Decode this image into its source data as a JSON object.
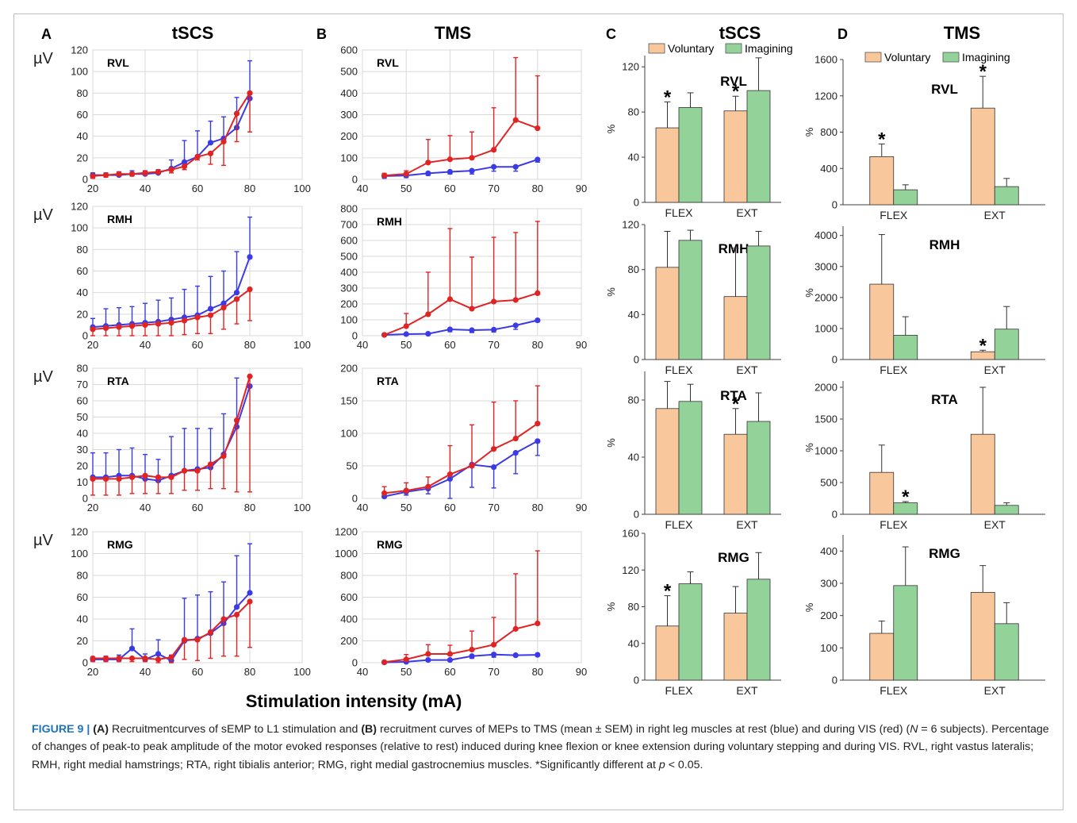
{
  "figure": {
    "panel_letters": [
      "A",
      "B",
      "C",
      "D"
    ],
    "panel_titles": [
      "tSCS",
      "TMS",
      "tSCS",
      "TMS"
    ],
    "x_axis_label": "Stimulation intensity (mA)",
    "unit_label": "µV",
    "percent_label": "%",
    "significance_marker": "*",
    "colors": {
      "rest": "#3a3ae6",
      "vis": "#e02424",
      "voluntary": "#f8c79b",
      "imagining": "#93d39a",
      "grid": "#d9d9d9",
      "axis": "#404040"
    }
  },
  "caption": {
    "figure_number": "FIGURE 9 |",
    "label_a": "(A)",
    "text_1": " Recruitmentcurves of sEMP to L1 stimulation and ",
    "label_b": "(B)",
    "text_2": " recruitment curves of MEPs to TMS (mean ± SEM) in right leg muscles at rest (blue) and during VIS (red) (",
    "n_symbol": "N",
    "text_3": " = 6 subjects). Percentage of changes of peak-to peak amplitude of the motor evoked responses (relative to rest) induced during knee flexion or knee extension during voluntary stepping and during VIS. RVL, right vastus lateralis; RMH, right medial hamstrings; RTA, right tibialis anterior; RMG, right medial gastrocnemius muscles. *Significantly different at ",
    "p_symbol": "p",
    "text_4": " < 0.05."
  },
  "chart_data": [
    {
      "panel": "A",
      "type": "line",
      "muscle": "RVL",
      "x": [
        20,
        25,
        30,
        35,
        40,
        45,
        50,
        55,
        60,
        65,
        70,
        75,
        80
      ],
      "xlim": [
        20,
        100
      ],
      "xticks": [
        20,
        40,
        60,
        80,
        100
      ],
      "ylim": [
        0,
        120
      ],
      "yticks": [
        0,
        20,
        40,
        60,
        80,
        100,
        120
      ],
      "ylabel": "µV",
      "series": [
        {
          "color": "blue",
          "values": [
            4,
            4,
            4,
            5,
            5,
            6,
            10,
            16,
            21,
            34,
            38,
            48,
            75
          ],
          "err": [
            2,
            2,
            3,
            3,
            3,
            3,
            8,
            20,
            24,
            20,
            20,
            28,
            35
          ],
          "err_dir": "up"
        },
        {
          "color": "red",
          "values": [
            3,
            4,
            5,
            5,
            6,
            7,
            9,
            12,
            21,
            24,
            35,
            61,
            80
          ],
          "err": [
            2,
            2,
            2,
            2,
            2,
            2,
            3,
            3,
            3,
            10,
            22,
            26,
            36
          ],
          "err_dir": "down"
        }
      ]
    },
    {
      "panel": "A",
      "type": "line",
      "muscle": "RMH",
      "x": [
        20,
        25,
        30,
        35,
        40,
        45,
        50,
        55,
        60,
        65,
        70,
        75,
        80
      ],
      "xlim": [
        20,
        100
      ],
      "xticks": [
        20,
        40,
        60,
        80,
        100
      ],
      "ylim": [
        0,
        120
      ],
      "yticks": [
        0,
        20,
        40,
        60,
        80,
        100,
        120
      ],
      "ylabel": "µV",
      "series": [
        {
          "color": "blue",
          "values": [
            8,
            9,
            10,
            11,
            12,
            13,
            15,
            17,
            19,
            25,
            30,
            40,
            73
          ],
          "err": [
            8,
            16,
            16,
            16,
            18,
            20,
            20,
            26,
            27,
            30,
            30,
            38,
            37
          ],
          "err_dir": "up"
        },
        {
          "color": "red",
          "values": [
            6,
            7,
            8,
            9,
            10,
            11,
            12,
            14,
            17,
            19,
            26,
            34,
            43
          ],
          "err": [
            6,
            7,
            8,
            9,
            10,
            11,
            12,
            13,
            15,
            17,
            20,
            23,
            29
          ],
          "err_dir": "down"
        }
      ]
    },
    {
      "panel": "A",
      "type": "line",
      "muscle": "RTA",
      "x": [
        20,
        25,
        30,
        35,
        40,
        45,
        50,
        55,
        60,
        65,
        70,
        75,
        80
      ],
      "xlim": [
        20,
        100
      ],
      "xticks": [
        20,
        40,
        60,
        80,
        100
      ],
      "ylim": [
        0,
        80
      ],
      "yticks": [
        0,
        10,
        20,
        30,
        40,
        50,
        60,
        70,
        80
      ],
      "ylabel": "µV",
      "series": [
        {
          "color": "blue",
          "values": [
            13,
            13,
            14,
            14,
            12,
            11,
            14,
            17,
            18,
            19,
            27,
            44,
            69
          ],
          "err": [
            15,
            15,
            16,
            17,
            15,
            13,
            24,
            26,
            25,
            24,
            25,
            30,
            0
          ],
          "err_dir": "up"
        },
        {
          "color": "red",
          "values": [
            12,
            12,
            12,
            13,
            14,
            13,
            13,
            17,
            17,
            21,
            26,
            48,
            75
          ],
          "err": [
            10,
            10,
            10,
            10,
            11,
            10,
            10,
            12,
            12,
            15,
            20,
            44,
            71
          ],
          "err_dir": "down"
        }
      ]
    },
    {
      "panel": "A",
      "type": "line",
      "muscle": "RMG",
      "x": [
        20,
        25,
        30,
        35,
        40,
        45,
        50,
        55,
        60,
        65,
        70,
        75,
        80
      ],
      "xlim": [
        20,
        100
      ],
      "xticks": [
        20,
        40,
        60,
        80,
        100
      ],
      "ylim": [
        0,
        120
      ],
      "yticks": [
        0,
        20,
        40,
        60,
        80,
        100,
        120
      ],
      "ylabel": "µV",
      "series": [
        {
          "color": "blue",
          "values": [
            3,
            3,
            3,
            13,
            3,
            8,
            2,
            20,
            22,
            27,
            36,
            51,
            64
          ],
          "err": [
            2,
            3,
            4,
            18,
            5,
            13,
            5,
            39,
            40,
            38,
            38,
            47,
            45
          ],
          "err_dir": "up"
        },
        {
          "color": "red",
          "values": [
            4,
            4,
            4,
            4,
            4,
            3,
            5,
            21,
            21,
            28,
            40,
            44,
            56
          ],
          "err": [
            3,
            3,
            3,
            3,
            3,
            3,
            5,
            18,
            19,
            24,
            34,
            38,
            42
          ],
          "err_dir": "down"
        }
      ]
    },
    {
      "panel": "B",
      "type": "line",
      "muscle": "RVL",
      "x": [
        45,
        50,
        55,
        60,
        65,
        70,
        75,
        80
      ],
      "xlim": [
        40,
        90
      ],
      "xticks": [
        40,
        50,
        60,
        70,
        80,
        90
      ],
      "ylim": [
        0,
        600
      ],
      "yticks": [
        0,
        100,
        200,
        300,
        400,
        500,
        600
      ],
      "series": [
        {
          "color": "blue",
          "values": [
            15,
            18,
            28,
            35,
            40,
            58,
            58,
            92
          ],
          "err": [
            10,
            10,
            10,
            10,
            15,
            20,
            20,
            12
          ],
          "err_dir": "down"
        },
        {
          "color": "red",
          "values": [
            18,
            25,
            78,
            93,
            100,
            137,
            275,
            237
          ],
          "err": [
            10,
            15,
            107,
            110,
            120,
            195,
            290,
            243
          ],
          "err_dir": "up"
        }
      ]
    },
    {
      "panel": "B",
      "type": "line",
      "muscle": "RMH",
      "x": [
        45,
        50,
        55,
        60,
        65,
        70,
        75,
        80
      ],
      "xlim": [
        40,
        90
      ],
      "xticks": [
        40,
        50,
        60,
        70,
        80,
        90
      ],
      "ylim": [
        0,
        800
      ],
      "yticks": [
        0,
        100,
        200,
        300,
        400,
        500,
        600,
        700,
        800
      ],
      "series": [
        {
          "color": "blue",
          "values": [
            5,
            10,
            12,
            40,
            35,
            38,
            65,
            97
          ],
          "err": [
            3,
            5,
            5,
            15,
            15,
            15,
            25,
            10
          ],
          "err_dir": "down"
        },
        {
          "color": "red",
          "values": [
            5,
            60,
            135,
            230,
            170,
            215,
            225,
            268
          ],
          "err": [
            3,
            80,
            265,
            445,
            325,
            405,
            425,
            452
          ],
          "err_dir": "up"
        }
      ]
    },
    {
      "panel": "B",
      "type": "line",
      "muscle": "RTA",
      "x": [
        45,
        50,
        55,
        60,
        65,
        70,
        75,
        80
      ],
      "xlim": [
        40,
        90
      ],
      "xticks": [
        40,
        50,
        60,
        70,
        80,
        90
      ],
      "ylim": [
        0,
        200
      ],
      "yticks": [
        0,
        50,
        100,
        150,
        200
      ],
      "series": [
        {
          "color": "blue",
          "values": [
            3,
            10,
            15,
            30,
            52,
            48,
            70,
            88
          ],
          "err": [
            2,
            5,
            8,
            30,
            35,
            32,
            32,
            22
          ],
          "err_dir": "down"
        },
        {
          "color": "red",
          "values": [
            8,
            12,
            18,
            37,
            50,
            76,
            92,
            115
          ],
          "err": [
            10,
            12,
            15,
            44,
            63,
            72,
            58,
            58
          ],
          "err_dir": "up"
        }
      ]
    },
    {
      "panel": "B",
      "type": "line",
      "muscle": "RMG",
      "x": [
        45,
        50,
        55,
        60,
        65,
        70,
        75,
        80
      ],
      "xlim": [
        40,
        90
      ],
      "xticks": [
        40,
        50,
        60,
        70,
        80,
        90
      ],
      "ylim": [
        0,
        1200
      ],
      "yticks": [
        0,
        200,
        400,
        600,
        800,
        1000,
        1200
      ],
      "series": [
        {
          "color": "blue",
          "values": [
            3,
            8,
            25,
            25,
            60,
            75,
            68,
            72
          ],
          "err": [
            2,
            5,
            10,
            10,
            20,
            25,
            10,
            10
          ],
          "err_dir": "down"
        },
        {
          "color": "red",
          "values": [
            5,
            30,
            80,
            80,
            120,
            165,
            310,
            360
          ],
          "err": [
            3,
            45,
            85,
            80,
            170,
            250,
            505,
            665
          ],
          "err_dir": "up"
        }
      ]
    },
    {
      "panel": "C",
      "type": "bar",
      "muscle": "RVL",
      "categories": [
        "FLEX",
        "EXT"
      ],
      "legend": [
        "Voluntary",
        "Imagining"
      ],
      "ylim": [
        0,
        130
      ],
      "yticks": [
        0,
        40,
        80,
        120
      ],
      "ylabel": "%",
      "series": [
        {
          "name": "Voluntary",
          "values": [
            66,
            81
          ],
          "err": [
            23,
            13
          ]
        },
        {
          "name": "Imagining",
          "values": [
            84,
            99
          ],
          "err": [
            13,
            29
          ]
        }
      ],
      "significant": [
        [
          0,
          0
        ],
        [
          1,
          0
        ]
      ]
    },
    {
      "panel": "C",
      "type": "bar",
      "muscle": "RMH",
      "categories": [
        "FLEX",
        "EXT"
      ],
      "ylim": [
        0,
        120
      ],
      "yticks": [
        0,
        40,
        80,
        120
      ],
      "ylabel": "%",
      "series": [
        {
          "name": "Voluntary",
          "values": [
            82,
            56
          ],
          "err": [
            32,
            43
          ]
        },
        {
          "name": "Imagining",
          "values": [
            106,
            101
          ],
          "err": [
            9,
            13
          ]
        }
      ],
      "significant": []
    },
    {
      "panel": "C",
      "type": "bar",
      "muscle": "RTA",
      "categories": [
        "FLEX",
        "EXT"
      ],
      "ylim": [
        0,
        100
      ],
      "yticks": [
        0,
        40,
        80
      ],
      "ylabel": "%",
      "series": [
        {
          "name": "Voluntary",
          "values": [
            74,
            56
          ],
          "err": [
            19,
            18
          ]
        },
        {
          "name": "Imagining",
          "values": [
            79,
            65
          ],
          "err": [
            12,
            20
          ]
        }
      ],
      "significant": [
        [
          1,
          0
        ]
      ]
    },
    {
      "panel": "C",
      "type": "bar",
      "muscle": "RMG",
      "categories": [
        "FLEX",
        "EXT"
      ],
      "ylim": [
        0,
        160
      ],
      "yticks": [
        0,
        40,
        80,
        120,
        160
      ],
      "ylabel": "%",
      "series": [
        {
          "name": "Voluntary",
          "values": [
            59,
            73
          ],
          "err": [
            33,
            29
          ]
        },
        {
          "name": "Imagining",
          "values": [
            105,
            110
          ],
          "err": [
            13,
            29
          ]
        }
      ],
      "significant": [
        [
          0,
          0
        ]
      ]
    },
    {
      "panel": "D",
      "type": "bar",
      "muscle": "RVL",
      "categories": [
        "FLEX",
        "EXT"
      ],
      "legend": [
        "Voluntary",
        "Imagining"
      ],
      "ylim": [
        0,
        1600
      ],
      "yticks": [
        0,
        400,
        800,
        1200,
        1600
      ],
      "ylabel": "%",
      "series": [
        {
          "name": "Voluntary",
          "values": [
            530,
            1065
          ],
          "err": [
            140,
            350
          ]
        },
        {
          "name": "Imagining",
          "values": [
            165,
            200
          ],
          "err": [
            55,
            90
          ]
        }
      ],
      "significant": [
        [
          0,
          0
        ],
        [
          1,
          0
        ]
      ]
    },
    {
      "panel": "D",
      "type": "bar",
      "muscle": "RMH",
      "categories": [
        "FLEX",
        "EXT"
      ],
      "ylim": [
        0,
        4300
      ],
      "yticks": [
        0,
        1000,
        2000,
        3000,
        4000
      ],
      "ylabel": "%",
      "series": [
        {
          "name": "Voluntary",
          "values": [
            2430,
            250
          ],
          "err": [
            1600,
            50
          ]
        },
        {
          "name": "Imagining",
          "values": [
            780,
            980
          ],
          "err": [
            600,
            730
          ]
        }
      ],
      "significant": [
        [
          1,
          0
        ]
      ]
    },
    {
      "panel": "D",
      "type": "bar",
      "muscle": "RTA",
      "categories": [
        "FLEX",
        "EXT"
      ],
      "ylim": [
        0,
        2100
      ],
      "yticks": [
        0,
        500,
        1000,
        1500,
        2000
      ],
      "ylabel": "%",
      "series": [
        {
          "name": "Voluntary",
          "values": [
            660,
            1260
          ],
          "err": [
            430,
            740
          ]
        },
        {
          "name": "Imagining",
          "values": [
            180,
            140
          ],
          "err": [
            20,
            40
          ]
        }
      ],
      "significant": [
        [
          0,
          1
        ]
      ]
    },
    {
      "panel": "D",
      "type": "bar",
      "muscle": "RMG",
      "categories": [
        "FLEX",
        "EXT"
      ],
      "ylim": [
        0,
        450
      ],
      "yticks": [
        0,
        100,
        200,
        300,
        400
      ],
      "ylabel": "%",
      "series": [
        {
          "name": "Voluntary",
          "values": [
            145,
            272
          ],
          "err": [
            38,
            83
          ]
        },
        {
          "name": "Imagining",
          "values": [
            293,
            175
          ],
          "err": [
            120,
            65
          ]
        }
      ],
      "significant": []
    }
  ]
}
